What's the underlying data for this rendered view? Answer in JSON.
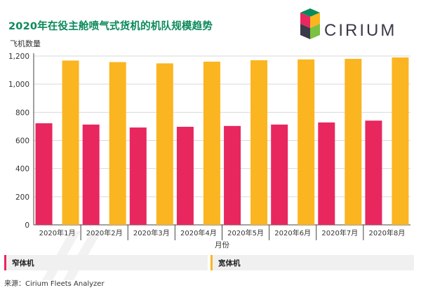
{
  "header": {
    "title": "2020年在役主舱喷气式货机的机队规模趋势",
    "logo_text": "CIRIUM"
  },
  "legend": [
    {
      "label": "窄体机",
      "color": "#e8275f"
    },
    {
      "label": "宽体机",
      "color": "#fbb521"
    }
  ],
  "source": "来源：Cirium Fleets Analyzer",
  "chart_data": {
    "type": "bar",
    "title": "2020年在役主舱喷气式货机的机队规模趋势",
    "ylabel": "飞机数量",
    "xlabel": "月份",
    "categories": [
      "2020年1月",
      "2020年2月",
      "2020年3月",
      "2020年4月",
      "2020年5月",
      "2020年6月",
      "2020年7月",
      "2020年8月"
    ],
    "series": [
      {
        "name": "窄体机",
        "color": "#e8275f",
        "values": [
          722,
          713,
          692,
          697,
          703,
          713,
          728,
          741
        ]
      },
      {
        "name": "宽体机",
        "color": "#fbb521",
        "values": [
          1168,
          1157,
          1148,
          1160,
          1170,
          1176,
          1180,
          1190
        ]
      }
    ],
    "ylim": [
      0,
      1200
    ],
    "yticks": [
      0,
      200,
      400,
      600,
      800,
      1000,
      1200
    ],
    "ytick_labels": [
      "0",
      "200",
      "400",
      "600",
      "800",
      "1,000",
      "1,200"
    ],
    "grid": true,
    "legend_position": "bottom"
  }
}
